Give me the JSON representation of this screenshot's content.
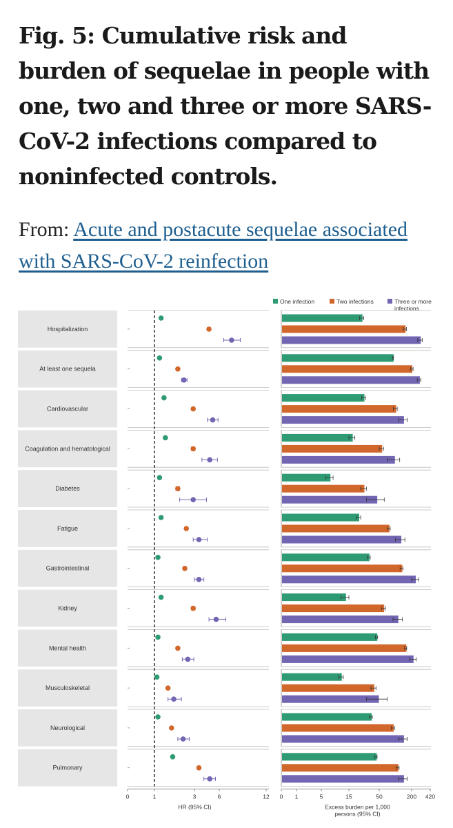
{
  "header": {
    "title": "Fig. 5: Cumulative risk and burden of sequelae in people with one, two and three or more SARS-CoV-2 infections compared to noninfected controls.",
    "from_prefix": "From:",
    "link_text": "Acute and postacute sequelae associated with SARS-CoV-2 reinfection"
  },
  "legend": {
    "one": "One infection",
    "two": "Two infections",
    "three": "Three or more infections"
  },
  "colors": {
    "one": "#2e9b73",
    "two": "#d2672c",
    "three": "#7266b3",
    "panel": "#e6e6e6"
  },
  "chart_data": [
    {
      "type": "scatter",
      "title": "",
      "xlabel": "HR (95% CI)",
      "x_ticks": [
        "0",
        "1",
        "3",
        "6",
        "12"
      ],
      "x_scale": "log",
      "reference_line": 1,
      "categories": [
        "Hospitalization",
        "At least one sequela",
        "Cardiovascular",
        "Coagulation and hematological",
        "Diabetes",
        "Fatigue",
        "Gastrointestinal",
        "Kidney",
        "Mental health",
        "Musculoskeletal",
        "Neurological",
        "Pulmonary"
      ],
      "series": [
        {
          "name": "One infection",
          "values": [
            1.2,
            1.15,
            1.3,
            1.35,
            1.15,
            1.2,
            1.1,
            1.2,
            1.1,
            1.07,
            1.1,
            1.65
          ],
          "ci_low": [
            1.19,
            1.14,
            1.28,
            1.33,
            1.14,
            1.19,
            1.09,
            1.18,
            1.09,
            1.06,
            1.09,
            1.6
          ],
          "ci_high": [
            1.22,
            1.17,
            1.33,
            1.38,
            1.17,
            1.22,
            1.12,
            1.23,
            1.12,
            1.09,
            1.12,
            1.7
          ]
        },
        {
          "name": "Two infections",
          "values": [
            4.5,
            1.9,
            2.9,
            2.9,
            1.9,
            2.4,
            2.3,
            2.9,
            1.9,
            1.45,
            1.6,
            3.4
          ],
          "ci_low": [
            4.3,
            1.85,
            2.8,
            2.75,
            1.8,
            2.3,
            2.2,
            2.75,
            1.85,
            1.4,
            1.55,
            3.25
          ],
          "ci_high": [
            4.7,
            1.95,
            3.0,
            3.05,
            2.0,
            2.5,
            2.4,
            3.05,
            1.95,
            1.5,
            1.65,
            3.55
          ]
        },
        {
          "name": "Three or more infections",
          "values": [
            7.2,
            2.25,
            5.0,
            4.6,
            2.9,
            3.4,
            3.4,
            5.5,
            2.5,
            1.7,
            2.2,
            4.6
          ],
          "ci_low": [
            6.4,
            2.1,
            4.3,
            3.7,
            2.0,
            2.9,
            3.0,
            4.5,
            2.15,
            1.45,
            1.9,
            3.9
          ],
          "ci_high": [
            8.2,
            2.45,
            5.8,
            5.7,
            4.2,
            4.3,
            3.9,
            6.6,
            2.95,
            2.1,
            2.6,
            5.4
          ]
        }
      ]
    },
    {
      "type": "bar",
      "orientation": "horizontal",
      "xlabel": "Excess burden per 1,000 persons (95% CI)",
      "x_ticks": [
        "0",
        "1",
        "5",
        "15",
        "50",
        "200",
        "420"
      ],
      "x_scale": "log",
      "categories": [
        "Hospitalization",
        "At least one sequela",
        "Cardiovascular",
        "Coagulation and hematological",
        "Diabetes",
        "Fatigue",
        "Gastrointestinal",
        "Kidney",
        "Mental health",
        "Musculoskeletal",
        "Neurological",
        "Pulmonary"
      ],
      "series": [
        {
          "name": "One infection",
          "values": [
            25,
            90,
            27,
            17,
            7,
            22,
            33,
            13,
            45,
            11,
            36,
            44
          ],
          "ci_low": [
            23,
            88,
            25,
            15,
            6,
            20,
            31,
            11,
            43,
            10,
            34,
            42
          ],
          "ci_high": [
            27,
            92,
            29,
            19,
            8,
            24,
            35,
            15,
            47,
            12,
            38,
            46
          ]
        },
        {
          "name": "Two infections",
          "values": [
            150,
            200,
            100,
            55,
            27,
            75,
            130,
            60,
            155,
            40,
            90,
            110
          ],
          "ci_low": [
            140,
            190,
            92,
            50,
            24,
            70,
            122,
            55,
            148,
            36,
            84,
            103
          ],
          "ci_high": [
            160,
            212,
            108,
            60,
            30,
            80,
            138,
            65,
            162,
            44,
            96,
            117
          ]
        },
        {
          "name": "Three or more infections",
          "values": [
            280,
            270,
            140,
            95,
            45,
            125,
            230,
            110,
            210,
            48,
            140,
            140
          ],
          "ci_low": [
            255,
            250,
            115,
            70,
            30,
            100,
            200,
            90,
            185,
            30,
            115,
            115
          ],
          "ci_high": [
            305,
            290,
            165,
            120,
            62,
            150,
            265,
            135,
            240,
            70,
            165,
            165
          ]
        }
      ]
    }
  ]
}
